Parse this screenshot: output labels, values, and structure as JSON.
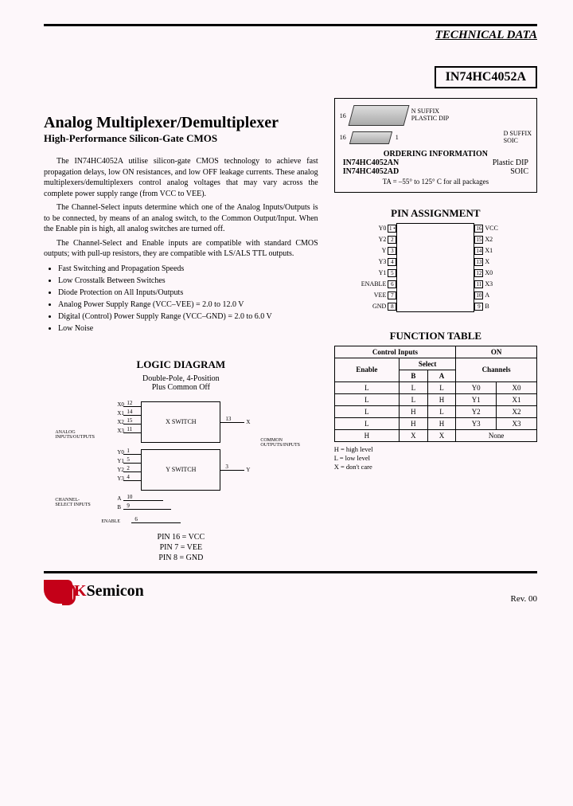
{
  "header": {
    "technical_data": "TECHNICAL DATA",
    "part_number": "IN74HC4052A"
  },
  "titles": {
    "main": "Analog Multiplexer/Demultiplexer",
    "sub": "High-Performance Silicon-Gate CMOS"
  },
  "paragraphs": {
    "p1": "The IN74HC4052A utilise silicon-gate CMOS technology to achieve fast propagation delays, low ON resistances, and low OFF leakage currents. These analog multiplexers/demultiplexers control analog voltages that may vary across the complete power supply range (from VCC to VEE).",
    "p2": "The Channel-Select inputs determine which one of the Analog Inputs/Outputs is to be connected, by means of an analog switch, to the Common Output/Input. When the Enable pin is high, all analog switches are turned off.",
    "p3": "The Channel-Select and Enable inputs are compatible with standard CMOS outputs; with pull-up resistors, they are compatible with LS/ALS TTL outputs."
  },
  "features": [
    "Fast Switching and Propagation Speeds",
    "Low Crosstalk Between Switches",
    "Diode Protection on All Inputs/Outputs",
    "Analog Power Supply Range (VCC–VEE) = 2.0 to 12.0 V",
    "Digital (Control) Power Supply Range (VCC–GND) = 2.0 to 6.0 V",
    "Low Noise"
  ],
  "package_box": {
    "n_suffix": "N SUFFIX",
    "plastic_dip": "PLASTIC DIP",
    "d_suffix": "D SUFFIX",
    "soic": "SOIC",
    "pin16": "16",
    "pin1": "1",
    "order_title": "ORDERING INFORMATION",
    "order1_pn": "IN74HC4052AN",
    "order1_pkg": "Plastic DIP",
    "order2_pn": "IN74HC4052AD",
    "order2_pkg": "SOIC",
    "ta": "TA = –55° to 125° C for all packages"
  },
  "sections": {
    "pin_assignment": "PIN ASSIGNMENT",
    "logic_diagram": "LOGIC DIAGRAM",
    "logic_sub1": "Double-Pole, 4-Position",
    "logic_sub2": "Plus Common Off",
    "function_table": "FUNCTION TABLE"
  },
  "pins": {
    "left": [
      "Y0",
      "Y2",
      "Y",
      "Y3",
      "Y1",
      "ENABLE",
      "VEE",
      "GND"
    ],
    "left_nums": [
      "1",
      "2",
      "3",
      "4",
      "5",
      "6",
      "7",
      "8"
    ],
    "right_nums": [
      "16",
      "15",
      "14",
      "13",
      "12",
      "11",
      "10",
      "9"
    ],
    "right": [
      "VCC",
      "X2",
      "X1",
      "X",
      "X0",
      "X3",
      "A",
      "B"
    ]
  },
  "function_table": {
    "h_control": "Control Inputs",
    "h_on": "ON",
    "h_enable": "Enable",
    "h_select": "Select",
    "h_channels": "Channels",
    "h_b": "B",
    "h_a": "A",
    "rows": [
      [
        "L",
        "L",
        "L",
        "Y0",
        "X0"
      ],
      [
        "L",
        "L",
        "H",
        "Y1",
        "X1"
      ],
      [
        "L",
        "H",
        "L",
        "Y2",
        "X2"
      ],
      [
        "L",
        "H",
        "H",
        "Y3",
        "X3"
      ],
      [
        "H",
        "X",
        "X",
        "None",
        "None"
      ]
    ],
    "legend_h": "H = high level",
    "legend_l": "L = low level",
    "legend_x": "X = don't care"
  },
  "logic": {
    "x_switch": "X SWITCH",
    "y_switch": "Y SWITCH",
    "analog_io": "ANALOG INPUTS/OUTPUTS",
    "common": "COMMON OUTPUTS/INPUTS",
    "channel_sel": "CHANNEL-SELECT INPUTS",
    "enable": "ENABLE",
    "x_pins": [
      "X0",
      "X1",
      "X2",
      "X3"
    ],
    "y_pins": [
      "Y0",
      "Y1",
      "Y2",
      "Y3"
    ],
    "x_nums": [
      "12",
      "14",
      "15",
      "11"
    ],
    "y_nums": [
      "1",
      "5",
      "2",
      "4"
    ],
    "x_out": "13",
    "x_out_lbl": "X",
    "y_out": "3",
    "y_out_lbl": "Y",
    "a_pin": "10",
    "a_lbl": "A",
    "b_pin": "9",
    "b_lbl": "B",
    "en_pin": "6"
  },
  "pin_notes": {
    "n1": "PIN 16 = VCC",
    "n2": "PIN 7 = VEE",
    "n3": "PIN 8 = GND"
  },
  "footer": {
    "logo_k": "K",
    "logo_rest": "Semicon",
    "rev": "Rev. 00"
  },
  "colors": {
    "accent": "#c40018",
    "bg": "#fdf7fa"
  }
}
